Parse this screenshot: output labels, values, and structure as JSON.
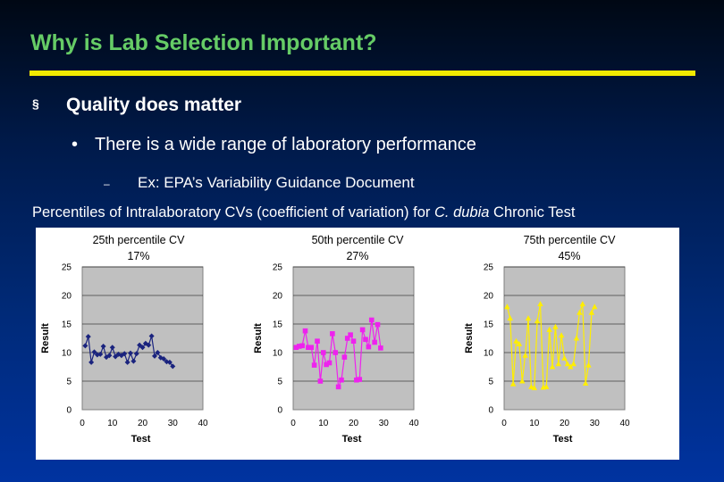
{
  "slide": {
    "title": "Why is Lab Selection Important?",
    "bullet1": {
      "mark": "§",
      "text": "Quality does matter"
    },
    "bullet2": {
      "mark": "•",
      "text": "There is a wide range of laboratory performance"
    },
    "bullet3": {
      "mark": "–",
      "text": "Ex: EPA’s Variability Guidance Document"
    },
    "caption": {
      "pre": "Percentiles of Intralaboratory CVs (coefficient of variation) for ",
      "italic": "C. dubia",
      "post": " Chronic Test"
    },
    "colors": {
      "title": "#66cc66",
      "rule": "#f2ea00"
    }
  },
  "chart_data": [
    {
      "type": "line",
      "title": "25th percentile CV",
      "subtitle": "17%",
      "xlabel": "Test",
      "ylabel": "Result",
      "xlim": [
        0,
        40
      ],
      "ylim": [
        0,
        25
      ],
      "xticks": [
        0,
        10,
        20,
        30,
        40
      ],
      "yticks": [
        0,
        5,
        10,
        15,
        20,
        25
      ],
      "color": "#1a237e",
      "marker": "diamond",
      "x": [
        1,
        2,
        3,
        4,
        5,
        6,
        7,
        8,
        9,
        10,
        11,
        12,
        13,
        14,
        15,
        16,
        17,
        18,
        19,
        20,
        21,
        22,
        23,
        24,
        25,
        26,
        27,
        28,
        29,
        30
      ],
      "y": [
        11.2,
        12.8,
        8.3,
        10.1,
        9.6,
        9.7,
        11.1,
        9.2,
        9.5,
        10.9,
        9.3,
        9.7,
        9.5,
        9.8,
        8.3,
        9.9,
        8.5,
        9.8,
        11.3,
        10.9,
        11.6,
        11.3,
        12.9,
        9.4,
        10.0,
        9.1,
        8.9,
        8.4,
        8.3,
        7.6
      ]
    },
    {
      "type": "line",
      "title": "50th percentile CV",
      "subtitle": "27%",
      "xlabel": "Test",
      "ylabel": "Result",
      "xlim": [
        0,
        40
      ],
      "ylim": [
        0,
        25
      ],
      "xticks": [
        0,
        10,
        20,
        30,
        40
      ],
      "yticks": [
        0,
        5,
        10,
        15,
        20,
        25
      ],
      "color": "#ee22ee",
      "marker": "square",
      "x": [
        1,
        2,
        3,
        4,
        5,
        6,
        7,
        8,
        9,
        10,
        11,
        12,
        13,
        14,
        15,
        16,
        17,
        18,
        19,
        20,
        21,
        22,
        23,
        24,
        25,
        26,
        27,
        28,
        29
      ],
      "y": [
        10.9,
        11.1,
        11.2,
        13.8,
        10.9,
        10.9,
        7.8,
        12.0,
        5.0,
        10.0,
        7.9,
        8.2,
        13.3,
        10.0,
        4.0,
        5.2,
        9.2,
        12.5,
        13.1,
        12.0,
        5.2,
        5.3,
        14.0,
        12.3,
        11.0,
        15.7,
        11.8,
        14.9,
        10.8
      ]
    },
    {
      "type": "line",
      "title": "75th percentile CV",
      "subtitle": "45%",
      "xlabel": "Test",
      "ylabel": "Result",
      "xlim": [
        0,
        40
      ],
      "ylim": [
        0,
        25
      ],
      "xticks": [
        0,
        10,
        20,
        30,
        40
      ],
      "yticks": [
        0,
        5,
        10,
        15,
        20,
        25
      ],
      "color": "#ffee00",
      "marker": "triangle",
      "x": [
        1,
        2,
        3,
        4,
        5,
        6,
        7,
        8,
        9,
        10,
        11,
        12,
        13,
        14,
        15,
        16,
        17,
        18,
        19,
        20,
        21,
        22,
        23,
        24,
        25,
        26,
        27,
        28,
        29,
        30
      ],
      "y": [
        18.0,
        16.0,
        4.5,
        12.0,
        11.5,
        5.0,
        9.5,
        16.0,
        4.0,
        3.8,
        15.5,
        18.5,
        3.9,
        4.0,
        14.0,
        7.5,
        14.5,
        8.0,
        13.0,
        9.0,
        8.0,
        7.5,
        8.0,
        12.5,
        17.0,
        18.5,
        4.6,
        7.8,
        17.0,
        18.0
      ]
    }
  ]
}
